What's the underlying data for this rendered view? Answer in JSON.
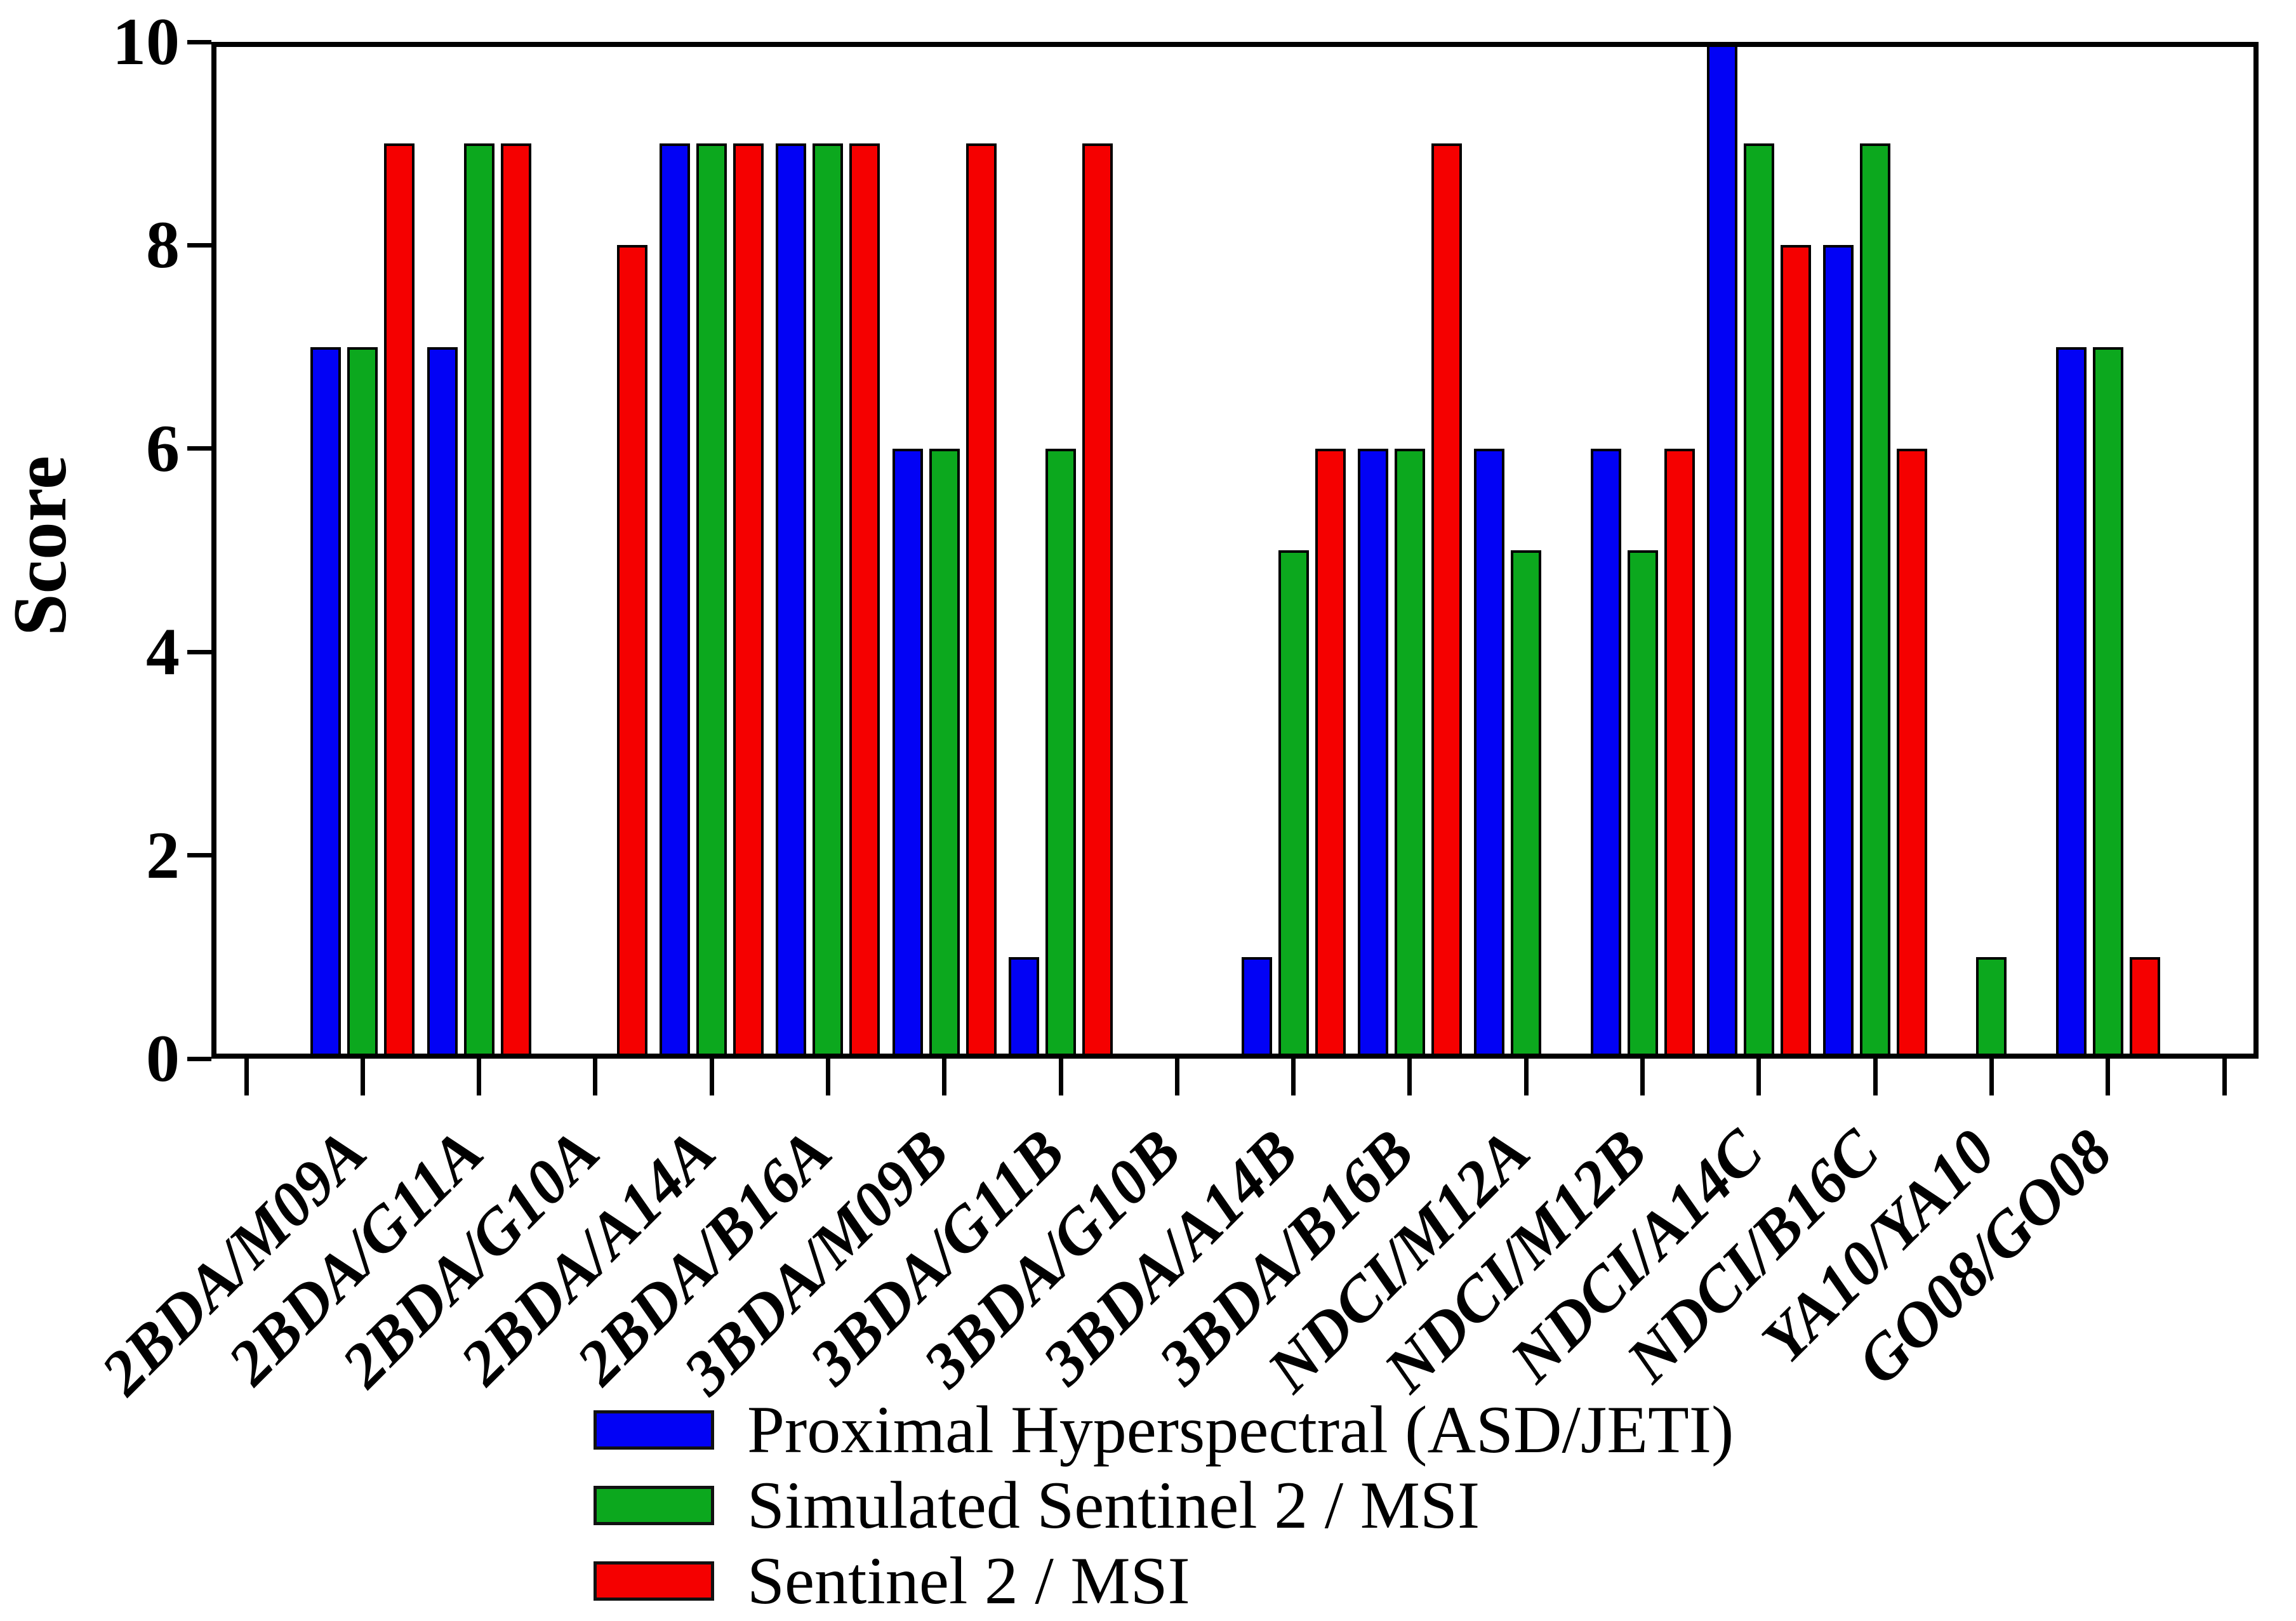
{
  "figure": {
    "background": "#ffffff",
    "axis_color": "#000000"
  },
  "chart_data": {
    "type": "bar",
    "title": "",
    "xlabel": "",
    "ylabel": "Score",
    "ylim": [
      0,
      10
    ],
    "yticks": [
      0,
      2,
      4,
      6,
      8,
      10
    ],
    "grid": false,
    "legend_position": "bottom-center",
    "bar_edge_color": "#000000",
    "categories": [
      "2BDA/M09A",
      "2BDA/G11A",
      "2BDA/G10A",
      "2BDA/A14A",
      "2BDA/B16A",
      "3BDA/M09B",
      "3BDA/G11B",
      "3BDA/G10B",
      "3BDA/A14B",
      "3BDA/B16B",
      "NDCI/M12A",
      "NDCI/M12B",
      "NDCI/A14C",
      "NDCI/B16C",
      "YA10/YA10",
      "GO08/GO08"
    ],
    "series": [
      {
        "name": "Proximal Hyperspectral (ASD/JETI)",
        "color": "#0202F5",
        "values": [
          7,
          7,
          0,
          9,
          9,
          6,
          1,
          0,
          1,
          6,
          6,
          6,
          10,
          8,
          0,
          7
        ]
      },
      {
        "name": "Simulated Sentinel 2 / MSI",
        "color": "#0CA81E",
        "values": [
          7,
          9,
          0,
          9,
          9,
          6,
          6,
          0,
          5,
          6,
          5,
          5,
          9,
          9,
          1,
          7
        ]
      },
      {
        "name": "Sentinel 2 / MSI",
        "color": "#F50000",
        "values": [
          9,
          9,
          8,
          9,
          9,
          9,
          9,
          0,
          6,
          9,
          0,
          6,
          8,
          6,
          0,
          1
        ]
      }
    ]
  }
}
